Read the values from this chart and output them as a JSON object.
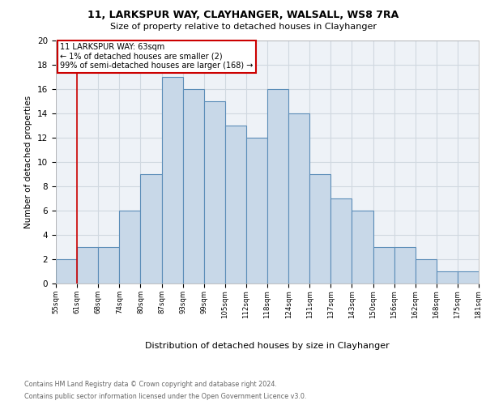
{
  "title": "11, LARKSPUR WAY, CLAYHANGER, WALSALL, WS8 7RA",
  "subtitle": "Size of property relative to detached houses in Clayhanger",
  "xlabel": "Distribution of detached houses by size in Clayhanger",
  "ylabel": "Number of detached properties",
  "bar_values": [
    2,
    3,
    3,
    6,
    9,
    17,
    16,
    15,
    13,
    12,
    16,
    14,
    9,
    7,
    6,
    3,
    3,
    2,
    1,
    1
  ],
  "bin_labels": [
    "55sqm",
    "61sqm",
    "68sqm",
    "74sqm",
    "80sqm",
    "87sqm",
    "93sqm",
    "99sqm",
    "105sqm",
    "112sqm",
    "118sqm",
    "124sqm",
    "131sqm",
    "137sqm",
    "143sqm",
    "150sqm",
    "156sqm",
    "162sqm",
    "168sqm",
    "175sqm",
    "181sqm"
  ],
  "bar_color": "#c8d8e8",
  "bar_edge_color": "#5b8db8",
  "ylim": [
    0,
    20
  ],
  "yticks": [
    0,
    2,
    4,
    6,
    8,
    10,
    12,
    14,
    16,
    18,
    20
  ],
  "property_label": "11 LARKSPUR WAY: 63sqm",
  "annotation_line1": "← 1% of detached houses are smaller (2)",
  "annotation_line2": "99% of semi-detached houses are larger (168) →",
  "vline_x": 1.0,
  "grid_color": "#d0d8e0",
  "background_color": "#eef2f7",
  "footnote1": "Contains HM Land Registry data © Crown copyright and database right 2024.",
  "footnote2": "Contains public sector information licensed under the Open Government Licence v3.0."
}
